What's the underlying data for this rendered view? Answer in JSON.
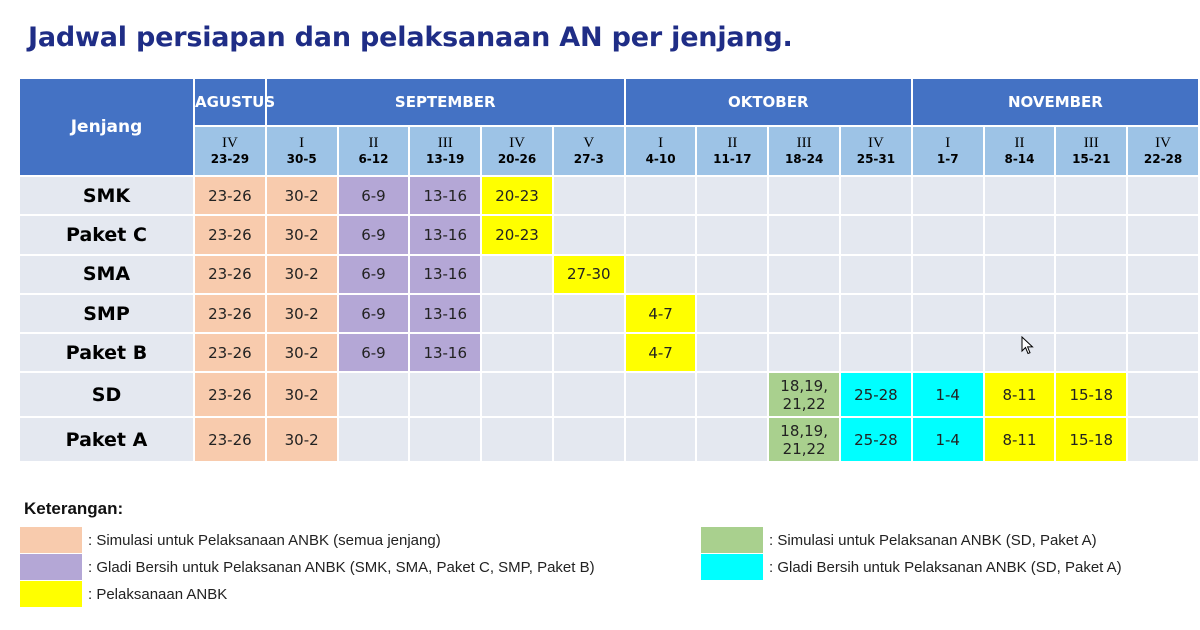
{
  "title": "Jadwal persiapan dan pelaksanaan AN per jenjang.",
  "header": {
    "jenjang_label": "Jenjang",
    "months": [
      {
        "label": "AGUSTUS",
        "span": 1
      },
      {
        "label": "SEPTEMBER",
        "span": 5
      },
      {
        "label": "OKTOBER",
        "span": 4
      },
      {
        "label": "NOVEMBER",
        "span": 4
      }
    ],
    "weeks": [
      {
        "roman": "IV",
        "range": "23-29"
      },
      {
        "roman": "I",
        "range": "30-5"
      },
      {
        "roman": "II",
        "range": "6-12"
      },
      {
        "roman": "III",
        "range": "13-19"
      },
      {
        "roman": "IV",
        "range": "20-26"
      },
      {
        "roman": "V",
        "range": "27-3"
      },
      {
        "roman": "I",
        "range": "4-10"
      },
      {
        "roman": "II",
        "range": "11-17"
      },
      {
        "roman": "III",
        "range": "18-24"
      },
      {
        "roman": "IV",
        "range": "25-31"
      },
      {
        "roman": "I",
        "range": "1-7"
      },
      {
        "roman": "II",
        "range": "8-14"
      },
      {
        "roman": "III",
        "range": "15-21"
      },
      {
        "roman": "IV",
        "range": "22-28"
      }
    ]
  },
  "rows": [
    {
      "level": "SMK",
      "size": "r1",
      "cells": [
        {
          "text": "23-26",
          "type": "sim"
        },
        {
          "text": "30-2",
          "type": "sim"
        },
        {
          "text": "6-9",
          "type": "gladi"
        },
        {
          "text": "13-16",
          "type": "gladi"
        },
        {
          "text": "20-23",
          "type": "pel"
        },
        {
          "text": "",
          "type": ""
        },
        {
          "text": "",
          "type": ""
        },
        {
          "text": "",
          "type": ""
        },
        {
          "text": "",
          "type": ""
        },
        {
          "text": "",
          "type": ""
        },
        {
          "text": "",
          "type": ""
        },
        {
          "text": "",
          "type": ""
        },
        {
          "text": "",
          "type": ""
        },
        {
          "text": "",
          "type": ""
        }
      ]
    },
    {
      "level": "Paket C",
      "size": "r1",
      "cells": [
        {
          "text": "23-26",
          "type": "sim"
        },
        {
          "text": "30-2",
          "type": "sim"
        },
        {
          "text": "6-9",
          "type": "gladi"
        },
        {
          "text": "13-16",
          "type": "gladi"
        },
        {
          "text": "20-23",
          "type": "pel"
        },
        {
          "text": "",
          "type": ""
        },
        {
          "text": "",
          "type": ""
        },
        {
          "text": "",
          "type": ""
        },
        {
          "text": "",
          "type": ""
        },
        {
          "text": "",
          "type": ""
        },
        {
          "text": "",
          "type": ""
        },
        {
          "text": "",
          "type": ""
        },
        {
          "text": "",
          "type": ""
        },
        {
          "text": "",
          "type": ""
        }
      ]
    },
    {
      "level": "SMA",
      "size": "r1",
      "cells": [
        {
          "text": "23-26",
          "type": "sim"
        },
        {
          "text": "30-2",
          "type": "sim"
        },
        {
          "text": "6-9",
          "type": "gladi"
        },
        {
          "text": "13-16",
          "type": "gladi"
        },
        {
          "text": "",
          "type": ""
        },
        {
          "text": "27-30",
          "type": "pel"
        },
        {
          "text": "",
          "type": ""
        },
        {
          "text": "",
          "type": ""
        },
        {
          "text": "",
          "type": ""
        },
        {
          "text": "",
          "type": ""
        },
        {
          "text": "",
          "type": ""
        },
        {
          "text": "",
          "type": ""
        },
        {
          "text": "",
          "type": ""
        },
        {
          "text": "",
          "type": ""
        }
      ]
    },
    {
      "level": "SMP",
      "size": "r1",
      "cells": [
        {
          "text": "23-26",
          "type": "sim"
        },
        {
          "text": "30-2",
          "type": "sim"
        },
        {
          "text": "6-9",
          "type": "gladi"
        },
        {
          "text": "13-16",
          "type": "gladi"
        },
        {
          "text": "",
          "type": ""
        },
        {
          "text": "",
          "type": ""
        },
        {
          "text": "4-7",
          "type": "pel"
        },
        {
          "text": "",
          "type": ""
        },
        {
          "text": "",
          "type": ""
        },
        {
          "text": "",
          "type": ""
        },
        {
          "text": "",
          "type": ""
        },
        {
          "text": "",
          "type": ""
        },
        {
          "text": "",
          "type": ""
        },
        {
          "text": "",
          "type": ""
        }
      ]
    },
    {
      "level": "Paket B",
      "size": "r1",
      "cells": [
        {
          "text": "23-26",
          "type": "sim"
        },
        {
          "text": "30-2",
          "type": "sim"
        },
        {
          "text": "6-9",
          "type": "gladi"
        },
        {
          "text": "13-16",
          "type": "gladi"
        },
        {
          "text": "",
          "type": ""
        },
        {
          "text": "",
          "type": ""
        },
        {
          "text": "4-7",
          "type": "pel"
        },
        {
          "text": "",
          "type": ""
        },
        {
          "text": "",
          "type": ""
        },
        {
          "text": "",
          "type": ""
        },
        {
          "text": "",
          "type": ""
        },
        {
          "text": "",
          "type": ""
        },
        {
          "text": "",
          "type": ""
        },
        {
          "text": "",
          "type": ""
        }
      ]
    },
    {
      "level": "SD",
      "size": "r2",
      "cells": [
        {
          "text": "23-26",
          "type": "sim"
        },
        {
          "text": "30-2",
          "type": "sim"
        },
        {
          "text": "",
          "type": ""
        },
        {
          "text": "",
          "type": ""
        },
        {
          "text": "",
          "type": ""
        },
        {
          "text": "",
          "type": ""
        },
        {
          "text": "",
          "type": ""
        },
        {
          "text": "",
          "type": ""
        },
        {
          "text": "18,19,\n21,22",
          "type": "simsd"
        },
        {
          "text": "25-28",
          "type": "gladisd"
        },
        {
          "text": "1-4",
          "type": "gladisd"
        },
        {
          "text": "8-11",
          "type": "pel"
        },
        {
          "text": "15-18",
          "type": "pel"
        },
        {
          "text": "",
          "type": ""
        }
      ]
    },
    {
      "level": "Paket A",
      "size": "r2",
      "cells": [
        {
          "text": "23-26",
          "type": "sim"
        },
        {
          "text": "30-2",
          "type": "sim"
        },
        {
          "text": "",
          "type": ""
        },
        {
          "text": "",
          "type": ""
        },
        {
          "text": "",
          "type": ""
        },
        {
          "text": "",
          "type": ""
        },
        {
          "text": "",
          "type": ""
        },
        {
          "text": "",
          "type": ""
        },
        {
          "text": "18,19,\n21,22",
          "type": "simsd"
        },
        {
          "text": "25-28",
          "type": "gladisd"
        },
        {
          "text": "1-4",
          "type": "gladisd"
        },
        {
          "text": "8-11",
          "type": "pel"
        },
        {
          "text": "15-18",
          "type": "pel"
        },
        {
          "text": "",
          "type": ""
        }
      ]
    }
  ],
  "legend": {
    "title": "Keterangan:",
    "items": [
      {
        "color": "#f8cbad",
        "label": ": Simulasi untuk Pelaksanaan ANBK (semua jenjang)"
      },
      {
        "color": "#b4a7d6",
        "label": ": Gladi Bersih untuk Pelaksanan ANBK (SMK, SMA, Paket C, SMP, Paket B)"
      },
      {
        "color": "#ffff00",
        "label": ": Pelaksanaan ANBK"
      },
      {
        "color": "#a9d08e",
        "label": ": Simulasi untuk Pelaksanan ANBK (SD, Paket A)"
      },
      {
        "color": "#00ffff",
        "label": ": Gladi Bersih untuk Pelaksanan ANBK (SD, Paket A)"
      }
    ]
  },
  "colors": {
    "title": "#1f2d86",
    "header_month": "#4472c4",
    "header_week": "#9dc3e6",
    "row_bg": "#e4e8f0"
  },
  "icons": {
    "cursor": "mouse-pointer-icon"
  }
}
